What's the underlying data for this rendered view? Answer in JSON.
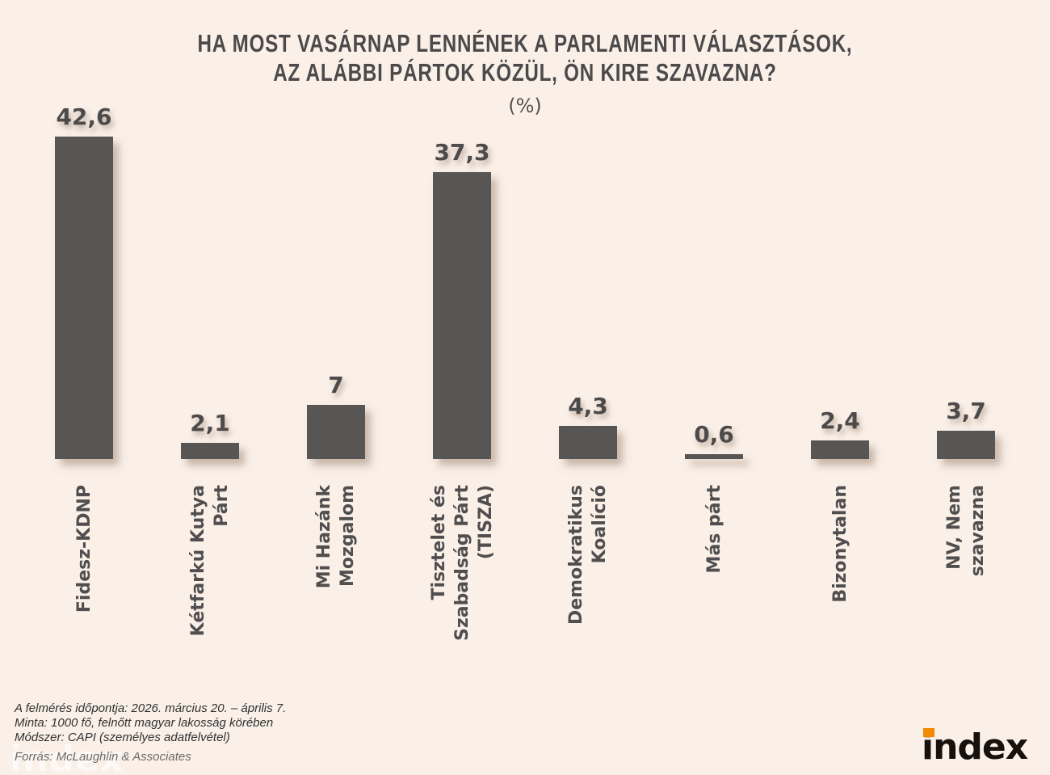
{
  "header": {
    "title_line1": "HA MOST VASÁRNAP LENNÉNEK A PARLAMENTI VÁLASZTÁSOK,",
    "title_line2": "AZ ALÁBBI PÁRTOK KÖZÜL, ÖN KIRE SZAVAZNA?",
    "unit_label": "(%)"
  },
  "chart_data": {
    "type": "bar",
    "title": "HA MOST VASÁRNAP LENNÉNEK A PARLAMENTI VÁLASZTÁSOK, AZ ALÁBBI PÁRTOK KÖZÜL, ÖN KIRE SZAVAZNA?",
    "unit": "%",
    "categories": [
      "Fidesz-KDNP",
      "Kétfarkú Kutya Párt",
      "Mi Hazánk Mozgalom",
      "Tisztelet és Szabadság Párt (TISZA)",
      "Demokratikus Koalíció",
      "Más párt",
      "Bizonytalan",
      "NV, Nem szavazna"
    ],
    "category_lines": [
      [
        "Fidesz-KDNP"
      ],
      [
        "Kétfarkú Kutya",
        "Párt"
      ],
      [
        "Mi Hazánk",
        "Mozgalom"
      ],
      [
        "Tisztelet és",
        "Szabadság Párt",
        "(TISZA)"
      ],
      [
        "Demokratikus",
        "Koalíció"
      ],
      [
        "Más párt"
      ],
      [
        "Bizonytalan"
      ],
      [
        "NV, Nem",
        "szavazna"
      ]
    ],
    "values": [
      42.6,
      2.1,
      7,
      37.3,
      4.3,
      0.6,
      2.4,
      3.7
    ],
    "value_labels": [
      "42,6",
      "2,1",
      "7",
      "37,3",
      "4,3",
      "0,6",
      "2,4",
      "3,7"
    ],
    "ylim": [
      0,
      46
    ],
    "grid": false,
    "legend": false,
    "bar_color": "#585655",
    "category_label_rotation": "vertical-bottom-to-top"
  },
  "footer": {
    "lines": [
      "A felmérés időpontja: 2026. március 20. – április 7.",
      "Minta: 1000 fő, felnőtt magyar lakosság körében",
      "Módszer: CAPI (személyes adatfelvétel)"
    ],
    "source": "Forrás: McLaughlin & Associates"
  },
  "branding": {
    "logo_text": "index",
    "logo_color": "#16110d",
    "logo_accent_color": "#f18a00",
    "watermark_text": "index"
  },
  "colors": {
    "background": "#faf0e8",
    "bar": "#585655",
    "text_dark": "#4c4a4a"
  }
}
